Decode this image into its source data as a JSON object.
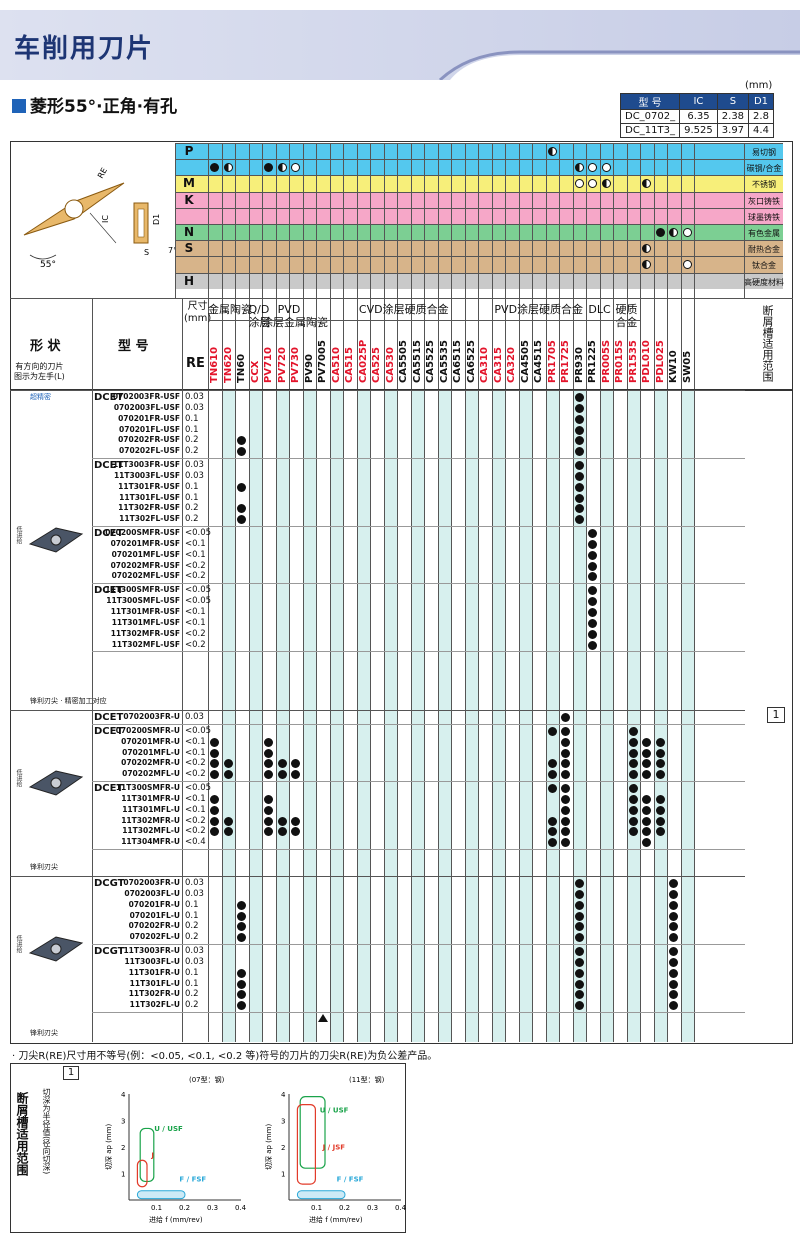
{
  "title": "车削用刀片",
  "subtitle": "菱形55°·正角·有孔",
  "unit": "(mm)",
  "spec": {
    "headers": [
      "型 号",
      "IC",
      "S",
      "D1"
    ],
    "rows": [
      [
        "DC_0702_",
        "6.35",
        "2.38",
        "2.8"
      ],
      [
        "DC_11T3_",
        "9.525",
        "3.97",
        "4.4"
      ]
    ]
  },
  "diagram": {
    "re": "RE",
    "ic": "IC",
    "s": "S",
    "d1": "D1",
    "angle": "55°",
    "relief": "7°"
  },
  "materials": [
    {
      "key": "P",
      "name": "易切钢",
      "color": "#54c8ee"
    },
    {
      "key": "",
      "name": "碳钢/合金钢",
      "color": "#54c8ee"
    },
    {
      "key": "M",
      "name": "不锈钢",
      "color": "#f7ef7a"
    },
    {
      "key": "K",
      "name": "灰口铸铁",
      "color": "#f6a7c8"
    },
    {
      "key": "",
      "name": "球墨铸铁",
      "color": "#f6a7c8"
    },
    {
      "key": "N",
      "name": "有色金属",
      "color": "#7ccf93"
    },
    {
      "key": "S",
      "name": "耐热合金",
      "color": "#d7b48a"
    },
    {
      "key": "",
      "name": "钛合金",
      "color": "#d7b48a"
    },
    {
      "key": "H",
      "name": "高硬度材料",
      "color": "#c9c9c9"
    }
  ],
  "left_headers": {
    "shape": "形 状",
    "shape_sub": "有方向的刀片\n图示为左手(L)",
    "model": "型 号",
    "size": "尺寸\n(mm)",
    "re": "RE",
    "breaker": "断屑槽适用范围"
  },
  "groups": [
    {
      "label": "金属陶瓷",
      "span": [
        0,
        2
      ]
    },
    {
      "label": "Q/D\n涂层",
      "span": [
        3,
        3
      ]
    },
    {
      "label": "PVD\n涂层金属陶瓷",
      "span": [
        4,
        7
      ]
    },
    {
      "label": "CVD涂层硬质合金",
      "span": [
        8,
        20
      ]
    },
    {
      "label": "PVD涂层硬质合金",
      "span": [
        21,
        27
      ]
    },
    {
      "label": "DLC",
      "span": [
        28,
        29
      ]
    },
    {
      "label": "硬质\n合金",
      "span": [
        30,
        31
      ]
    }
  ],
  "grades": [
    {
      "n": "TN610",
      "c": "#e3142b"
    },
    {
      "n": "TN620",
      "c": "#e3142b"
    },
    {
      "n": "TN60",
      "c": "#111"
    },
    {
      "n": "CCX",
      "c": "#e3142b"
    },
    {
      "n": "PV710",
      "c": "#e3142b"
    },
    {
      "n": "PV720",
      "c": "#e3142b"
    },
    {
      "n": "PV730",
      "c": "#e3142b"
    },
    {
      "n": "PV90",
      "c": "#111"
    },
    {
      "n": "PV7005",
      "c": "#111"
    },
    {
      "n": "CA510",
      "c": "#e3142b"
    },
    {
      "n": "CA515",
      "c": "#e3142b"
    },
    {
      "n": "CA025P",
      "c": "#e3142b"
    },
    {
      "n": "CA525",
      "c": "#e3142b"
    },
    {
      "n": "CA530",
      "c": "#e3142b"
    },
    {
      "n": "CA5505",
      "c": "#111"
    },
    {
      "n": "CA5515",
      "c": "#111"
    },
    {
      "n": "CA5525",
      "c": "#111"
    },
    {
      "n": "CA5535",
      "c": "#111"
    },
    {
      "n": "CA6515",
      "c": "#111"
    },
    {
      "n": "CA6525",
      "c": "#111"
    },
    {
      "n": "CA310",
      "c": "#e3142b"
    },
    {
      "n": "CA315",
      "c": "#e3142b"
    },
    {
      "n": "CA320",
      "c": "#e3142b"
    },
    {
      "n": "CA4505",
      "c": "#111"
    },
    {
      "n": "CA4515",
      "c": "#111"
    },
    {
      "n": "PR1705",
      "c": "#e3142b"
    },
    {
      "n": "PR1725",
      "c": "#e3142b"
    },
    {
      "n": "PR930",
      "c": "#111"
    },
    {
      "n": "PR1225",
      "c": "#111"
    },
    {
      "n": "PR005S",
      "c": "#e3142b"
    },
    {
      "n": "PR015S",
      "c": "#e3142b"
    },
    {
      "n": "PR1535",
      "c": "#e3142b"
    },
    {
      "n": "PDL010",
      "c": "#e3142b"
    },
    {
      "n": "PDL025",
      "c": "#e3142b"
    },
    {
      "n": "KW10",
      "c": "#111"
    },
    {
      "n": "SW05",
      "c": "#111"
    }
  ],
  "sections": [
    {
      "tag": "超精密",
      "caption": "锋利刃尖 · 精密加工对应",
      "shape_label": "低进给",
      "blocks": [
        {
          "series": "DCET",
          "rows": [
            [
              "0702003FR-USF",
              "0.03"
            ],
            [
              "0702003FL-USF",
              "0.03"
            ],
            [
              "070201FR-USF",
              "0.1"
            ],
            [
              "070201FL-USF",
              "0.1"
            ],
            [
              "070202FR-USF",
              "0.2"
            ],
            [
              "070202FL-USF",
              "0.2"
            ]
          ]
        },
        {
          "series": "DCET",
          "rows": [
            [
              "11T3003FR-USF",
              "0.03"
            ],
            [
              "11T3003FL-USF",
              "0.03"
            ],
            [
              "11T301FR-USF",
              "0.1"
            ],
            [
              "11T301FL-USF",
              "0.1"
            ],
            [
              "11T302FR-USF",
              "0.2"
            ],
            [
              "11T302FL-USF",
              "0.2"
            ]
          ]
        },
        {
          "series": "DCET",
          "rows": [
            [
              "070200SMFR-USF",
              "<0.05"
            ],
            [
              "070201MFR-USF",
              "<0.1"
            ],
            [
              "070201MFL-USF",
              "<0.1"
            ],
            [
              "070202MFR-USF",
              "<0.2"
            ],
            [
              "070202MFL-USF",
              "<0.2"
            ]
          ]
        },
        {
          "series": "DCET",
          "rows": [
            [
              "11T300SMFR-USF",
              "<0.05"
            ],
            [
              "11T300SMFL-USF",
              "<0.05"
            ],
            [
              "11T301MFR-USF",
              "<0.1"
            ],
            [
              "11T301MFL-USF",
              "<0.1"
            ],
            [
              "11T302MFR-USF",
              "<0.2"
            ],
            [
              "11T302MFL-USF",
              "<0.2"
            ]
          ]
        }
      ]
    },
    {
      "tag": "",
      "caption": "锋利刃尖",
      "shape_label": "低进给",
      "blocks": [
        {
          "series": "DCET",
          "rows": [
            [
              "0702003FR-U",
              "0.03"
            ]
          ]
        },
        {
          "series": "DCET",
          "rows": [
            [
              "070200SMFR-U",
              "<0.05"
            ],
            [
              "070201MFR-U",
              "<0.1"
            ],
            [
              "070201MFL-U",
              "<0.1"
            ],
            [
              "070202MFR-U",
              "<0.2"
            ],
            [
              "070202MFL-U",
              "<0.2"
            ]
          ]
        },
        {
          "series": "DCET",
          "rows": [
            [
              "11T300SMFR-U",
              "<0.05"
            ],
            [
              "11T301MFR-U",
              "<0.1"
            ],
            [
              "11T301MFL-U",
              "<0.1"
            ],
            [
              "11T302MFR-U",
              "<0.2"
            ],
            [
              "11T302MFL-U",
              "<0.2"
            ],
            [
              "11T304MFR-U",
              "<0.4"
            ]
          ]
        }
      ]
    },
    {
      "tag": "",
      "caption": "锋利刃尖",
      "shape_label": "低进给",
      "blocks": [
        {
          "series": "DCGT",
          "rows": [
            [
              "0702003FR-U",
              "0.03"
            ],
            [
              "0702003FL-U",
              "0.03"
            ],
            [
              "070201FR-U",
              "0.1"
            ],
            [
              "070201FL-U",
              "0.1"
            ],
            [
              "070202FR-U",
              "0.2"
            ],
            [
              "070202FL-U",
              "0.2"
            ]
          ]
        },
        {
          "series": "DCGT",
          "rows": [
            [
              "11T3003FR-U",
              "0.03"
            ],
            [
              "11T3003FL-U",
              "0.03"
            ],
            [
              "11T301FR-U",
              "0.1"
            ],
            [
              "11T301FL-U",
              "0.1"
            ],
            [
              "11T302FR-U",
              "0.2"
            ],
            [
              "11T302FL-U",
              "0.2"
            ]
          ]
        }
      ]
    }
  ],
  "breaker_box": "1",
  "footnote": "· 刀尖R(RE)尺寸用不等号(例：<0.05, <0.1, <0.2 等)符号的刀片的刀尖R(RE)为负公差产品。",
  "chart_panel": {
    "title": "断屑槽适用范围",
    "sub": "切深为半径值(径向切深)",
    "num": "1"
  },
  "chart_data": [
    {
      "type": "area",
      "title": "(07型：钢)",
      "xlabel": "进给 f (mm/rev)",
      "ylabel": "切深 ap (mm)",
      "xlim": [
        0,
        0.4
      ],
      "ylim": [
        0,
        4
      ],
      "xticks": [
        "0.1",
        "0.2",
        "0.3",
        "0.4"
      ],
      "yticks": [
        "1",
        "2",
        "3",
        "4"
      ],
      "series": [
        {
          "name": "U / USF",
          "color": "#1aa34a"
        },
        {
          "name": "J",
          "color": "#e23b2a"
        },
        {
          "name": "F / FSF",
          "color": "#2aa8d8"
        }
      ]
    },
    {
      "type": "area",
      "title": "(11型：钢)",
      "xlabel": "进给 f (mm/rev)",
      "ylabel": "切深 ap (mm)",
      "xlim": [
        0,
        0.4
      ],
      "ylim": [
        0,
        4
      ],
      "xticks": [
        "0.1",
        "0.2",
        "0.3",
        "0.4"
      ],
      "yticks": [
        "1",
        "2",
        "3",
        "4"
      ],
      "series": [
        {
          "name": "U / USF",
          "color": "#1aa34a"
        },
        {
          "name": "J / JSF",
          "color": "#e23b2a"
        },
        {
          "name": "F / FSF",
          "color": "#2aa8d8"
        }
      ]
    }
  ]
}
